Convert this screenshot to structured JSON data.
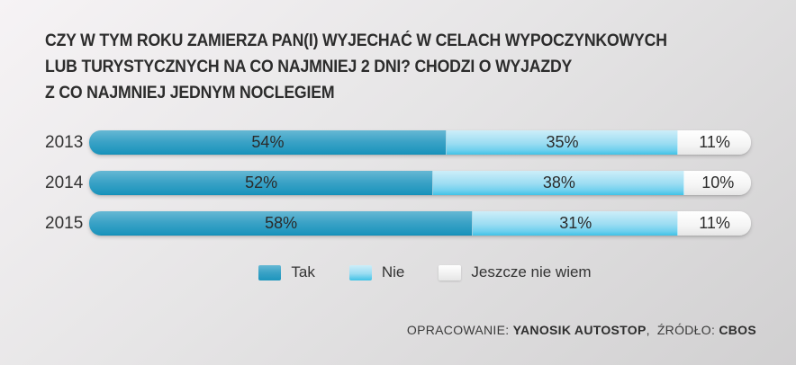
{
  "header": {
    "title_lines": [
      "CZY W TYM ROKU ZAMIERZA PAN(I) WYJECHAĆ W CELACH WYPOCZYNKOWYCH",
      "LUB TURYSTYCZNYCH NA CO NAJMNIEJ 2 DNI? CHODZI O WYJAZDY",
      "Z CO NAJMNIEJ JEDNYM NOCLEGIEM"
    ]
  },
  "chart_data": {
    "type": "bar",
    "orientation": "horizontal",
    "stacked": true,
    "title": "CZY W TYM ROKU ZAMIERZA PAN(I) WYJECHAĆ W CELACH WYPOCZYNKOWYCH LUB TURYSTYCZNYCH NA CO NAJMNIEJ 2 DNI? CHODZI O WYJAZDY Z CO NAJMNIEJ JEDNYM NOCLEGIEM",
    "categories": [
      "2013",
      "2014",
      "2015"
    ],
    "series": [
      {
        "name": "Tak",
        "color": "#35a0c5",
        "values": [
          54,
          52,
          58
        ],
        "labels": [
          "54%",
          "52%",
          "58%"
        ]
      },
      {
        "name": "Nie",
        "color": "#8ddaf2",
        "values": [
          35,
          38,
          31
        ],
        "labels": [
          "35%",
          "38%",
          "31%"
        ]
      },
      {
        "name": "Jeszcze nie wiem",
        "color": "#f5f5f5",
        "values": [
          11,
          10,
          11
        ],
        "labels": [
          "11%",
          "10%",
          "11%"
        ]
      }
    ],
    "value_format": "percent",
    "xlim": [
      0,
      100
    ],
    "grid": false,
    "legend_position": "bottom"
  },
  "colors": {
    "bg-top": "#f6f3f5",
    "bg-mid": "#e6e5e6",
    "bg-bottom": "#d1d0d1",
    "text-dark": "#2c2c2c",
    "tak-top": "#66b8d4",
    "tak-mid": "#3aa2c6",
    "tak-bottom": "#1d95bd",
    "tak-rim": "#118fb8",
    "nie-top": "#cdeef9",
    "nie-mid": "#9adcf2",
    "nie-low": "#6fd0ee",
    "nie-bottom": "#3fc2e6",
    "wiem-top": "#ffffff",
    "wiem-mid": "#f5f5f5",
    "wiem-bottom": "#e6e6e6"
  },
  "footer": {
    "prepared_label": "OPRACOWANIE:",
    "prepared_value": "YANOSIK AUTOSTOP",
    "separator": ",",
    "source_label": "ŹRÓDŁO:",
    "source_value": "CBOS"
  }
}
